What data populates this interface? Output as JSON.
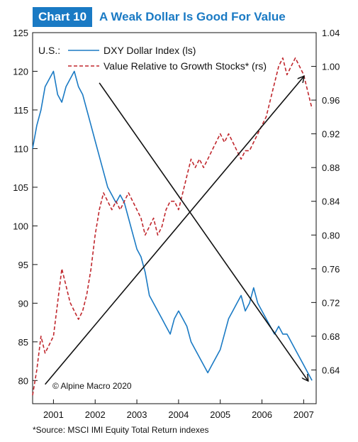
{
  "header": {
    "chart_number": "Chart 10",
    "title": "A Weak Dollar Is Good For Value"
  },
  "chart_data": {
    "type": "line",
    "title": "A Weak Dollar Is Good For Value",
    "x_ticks": [
      "2001",
      "2002",
      "2003",
      "2004",
      "2005",
      "2006",
      "2007"
    ],
    "x_range": [
      2000.5,
      2007.3
    ],
    "left_axis": {
      "ticks": [
        "125",
        "120",
        "115",
        "110",
        "105",
        "100",
        "95",
        "90",
        "85",
        "80"
      ],
      "ylim": [
        77,
        125
      ],
      "scale": "ls"
    },
    "right_axis": {
      "ticks": [
        "1.04",
        "1.00",
        "0.96",
        "0.92",
        "0.88",
        "0.84",
        "0.80",
        "0.76",
        "0.72",
        "0.68",
        "0.64"
      ],
      "ylim": [
        0.6,
        1.04
      ],
      "scale": "rs"
    },
    "legend_prefix": "U.S.:",
    "series": [
      {
        "name": "DXY Dollar Index (ls)",
        "axis": "left",
        "color": "#1a7ac4",
        "style": "solid",
        "x": [
          2000.5,
          2000.6,
          2000.7,
          2000.8,
          2000.9,
          2001.0,
          2001.1,
          2001.2,
          2001.3,
          2001.4,
          2001.5,
          2001.6,
          2001.7,
          2001.8,
          2001.9,
          2002.0,
          2002.1,
          2002.2,
          2002.3,
          2002.4,
          2002.5,
          2002.6,
          2002.7,
          2002.8,
          2002.9,
          2003.0,
          2003.1,
          2003.2,
          2003.3,
          2003.4,
          2003.5,
          2003.6,
          2003.7,
          2003.8,
          2003.9,
          2004.0,
          2004.1,
          2004.2,
          2004.3,
          2004.4,
          2004.5,
          2004.6,
          2004.7,
          2004.8,
          2004.9,
          2005.0,
          2005.1,
          2005.2,
          2005.3,
          2005.4,
          2005.5,
          2005.6,
          2005.7,
          2005.8,
          2005.9,
          2006.0,
          2006.1,
          2006.2,
          2006.3,
          2006.4,
          2006.5,
          2006.6,
          2006.7,
          2006.8,
          2006.9,
          2007.0,
          2007.1,
          2007.2
        ],
        "values": [
          110,
          113,
          115,
          118,
          119,
          120,
          117,
          116,
          118,
          119,
          120,
          118,
          117,
          115,
          113,
          111,
          109,
          107,
          105,
          104,
          103,
          104,
          103,
          101,
          99,
          97,
          96,
          94,
          91,
          90,
          89,
          88,
          87,
          86,
          88,
          89,
          88,
          87,
          85,
          84,
          83,
          82,
          81,
          82,
          83,
          84,
          86,
          88,
          89,
          90,
          91,
          89,
          90,
          92,
          90,
          89,
          88,
          87,
          86,
          87,
          86,
          86,
          85,
          84,
          83,
          82,
          81,
          80
        ]
      },
      {
        "name": "Value Relative to Growth Stocks* (rs)",
        "axis": "right",
        "color": "#c0272d",
        "style": "dashed",
        "x": [
          2000.5,
          2000.6,
          2000.7,
          2000.8,
          2000.9,
          2001.0,
          2001.1,
          2001.2,
          2001.3,
          2001.4,
          2001.5,
          2001.6,
          2001.7,
          2001.8,
          2001.9,
          2002.0,
          2002.1,
          2002.2,
          2002.3,
          2002.4,
          2002.5,
          2002.6,
          2002.7,
          2002.8,
          2002.9,
          2003.0,
          2003.1,
          2003.2,
          2003.3,
          2003.4,
          2003.5,
          2003.6,
          2003.7,
          2003.8,
          2003.9,
          2004.0,
          2004.1,
          2004.2,
          2004.3,
          2004.4,
          2004.5,
          2004.6,
          2004.7,
          2004.8,
          2004.9,
          2005.0,
          2005.1,
          2005.2,
          2005.3,
          2005.4,
          2005.5,
          2005.6,
          2005.7,
          2005.8,
          2005.9,
          2006.0,
          2006.1,
          2006.2,
          2006.3,
          2006.4,
          2006.5,
          2006.6,
          2006.7,
          2006.8,
          2006.9,
          2007.0,
          2007.1,
          2007.2
        ],
        "values": [
          0.61,
          0.64,
          0.68,
          0.66,
          0.67,
          0.68,
          0.72,
          0.76,
          0.74,
          0.72,
          0.71,
          0.7,
          0.71,
          0.73,
          0.76,
          0.8,
          0.83,
          0.85,
          0.84,
          0.83,
          0.84,
          0.83,
          0.84,
          0.85,
          0.84,
          0.83,
          0.82,
          0.8,
          0.81,
          0.82,
          0.8,
          0.81,
          0.83,
          0.84,
          0.84,
          0.83,
          0.85,
          0.87,
          0.89,
          0.88,
          0.89,
          0.88,
          0.89,
          0.9,
          0.91,
          0.92,
          0.91,
          0.92,
          0.91,
          0.9,
          0.89,
          0.9,
          0.9,
          0.91,
          0.92,
          0.93,
          0.94,
          0.96,
          0.98,
          1.0,
          1.01,
          0.99,
          1.0,
          1.01,
          1.0,
          0.99,
          0.97,
          0.95
        ]
      }
    ],
    "trend_arrows": [
      {
        "from": [
          2002.1,
          118.5
        ],
        "to": [
          2007.1,
          80.0
        ]
      },
      {
        "from": [
          2000.8,
          79.5
        ],
        "to": [
          2007.0,
          119.3
        ]
      }
    ],
    "annotation": "© Alpine Macro 2020",
    "grid": false
  },
  "source": "*Source: MSCI IMI Equity Total Return indexes"
}
